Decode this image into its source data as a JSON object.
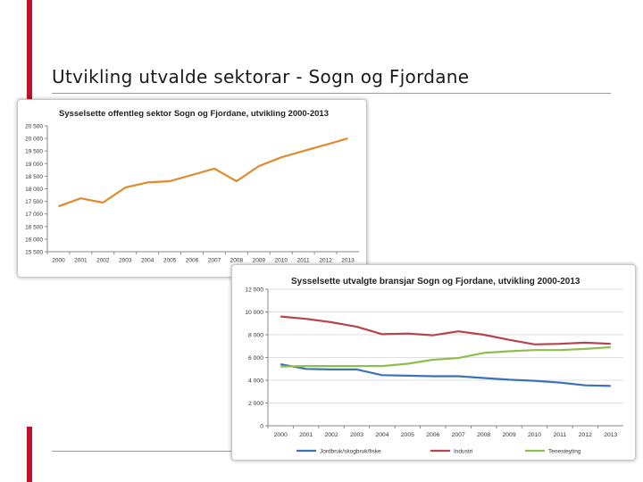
{
  "slide": {
    "title": "Utvikling utvalde sektorar - Sogn og Fjordane"
  },
  "colors": {
    "accent": "#c0102a",
    "offentleg": "#e08a2c",
    "jordbruk": "#3d72b8",
    "industri": "#b5444e",
    "tenesteyting": "#8fbd4f"
  },
  "chart_data": [
    {
      "type": "line",
      "title": "Sysselsette offentleg sektor Sogn og Fjordane, utvikling 2000-2013",
      "x": [
        "2000",
        "2001",
        "2002",
        "2003",
        "2004",
        "2005",
        "2006",
        "2007",
        "2008",
        "2009",
        "2010",
        "2011",
        "2012",
        "2013"
      ],
      "series": [
        {
          "values": [
            17300,
            17620,
            17450,
            18050,
            18250,
            18300,
            18550,
            18800,
            18300,
            18900,
            19250,
            19500,
            19750,
            20000
          ]
        }
      ],
      "ylim": [
        15500,
        20500
      ],
      "yticks": [
        "15 500",
        "16 000",
        "16 500",
        "17 000",
        "17 500",
        "18 000",
        "18 500",
        "19 000",
        "19 500",
        "20 000",
        "20 500"
      ],
      "grid": false,
      "legend": "none"
    },
    {
      "type": "line",
      "title": "Sysselsette utvalgte bransjar Sogn og Fjordane, utvikling 2000-2013",
      "x": [
        "2000",
        "2001",
        "2002",
        "2003",
        "2004",
        "2005",
        "2006",
        "2007",
        "2008",
        "2009",
        "2010",
        "2011",
        "2012",
        "2013"
      ],
      "series": [
        {
          "name": "Jordbruk/skogbruk/fiske",
          "values": [
            5400,
            5000,
            4950,
            4950,
            4450,
            4400,
            4350,
            4350,
            4200,
            4050,
            3950,
            3800,
            3550,
            3500
          ]
        },
        {
          "name": "Industri",
          "values": [
            9600,
            9400,
            9100,
            8700,
            8050,
            8100,
            7950,
            8300,
            8000,
            7550,
            7150,
            7200,
            7300,
            7200
          ]
        },
        {
          "name": "Tenesteyting",
          "values": [
            5200,
            5250,
            5250,
            5250,
            5250,
            5450,
            5800,
            5950,
            6400,
            6550,
            6650,
            6650,
            6750,
            6900
          ]
        }
      ],
      "ylim": [
        0,
        12000
      ],
      "yticks": [
        "0",
        "2 000",
        "4 000",
        "6 000",
        "8 000",
        "10 000",
        "12 000"
      ],
      "grid": true,
      "legend": "bottom"
    }
  ]
}
